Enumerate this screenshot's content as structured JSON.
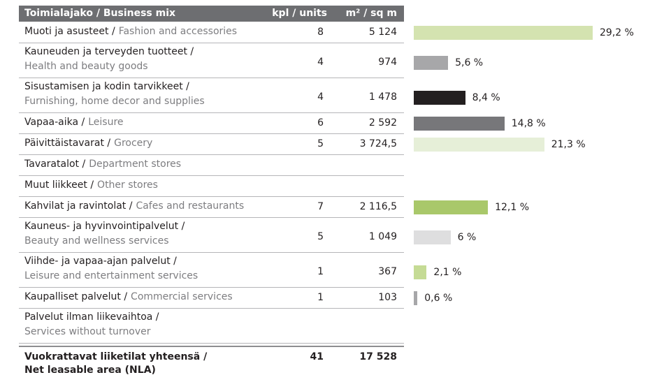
{
  "header": {
    "label": "Toimialajako / Business mix",
    "units": "kpl / units",
    "area": "m² / sq m"
  },
  "rows": [
    {
      "fi": "Muoti ja asusteet /",
      "en": "Fashion and accessories",
      "units": "8",
      "area": "5 124",
      "share": 29.2,
      "share_label": "29,2 %",
      "color": "#d4e3b0"
    },
    {
      "fi": "Kauneuden ja terveyden tuotteet /",
      "en": "Health and beauty goods",
      "units": "4",
      "area": "974",
      "share": 5.6,
      "share_label": "5,6 %",
      "color": "#a7a7a9"
    },
    {
      "fi": "Sisustamisen ja kodin tarvikkeet /",
      "en": "Furnishing, home decor and supplies",
      "units": "4",
      "area": "1 478",
      "share": 8.4,
      "share_label": "8,4 %",
      "color": "#231f20"
    },
    {
      "fi": "Vapaa-aika /",
      "en": "Leisure",
      "units": "6",
      "area": "2 592",
      "share": 14.8,
      "share_label": "14,8 %",
      "color": "#77777a"
    },
    {
      "fi": "Päivittäistavarat /",
      "en": "Grocery",
      "units": "5",
      "area": "3 724,5",
      "share": 21.3,
      "share_label": "21,3 %",
      "color": "#e6efd8"
    },
    {
      "fi": "Tavaratalot /",
      "en": "Department stores"
    },
    {
      "fi": "Muut liikkeet /",
      "en": "Other stores"
    },
    {
      "fi": "Kahvilat ja ravintolat /",
      "en": "Cafes and restaurants",
      "units": "7",
      "area": "2 116,5",
      "share": 12.1,
      "share_label": "12,1 %",
      "color": "#a9c86a"
    },
    {
      "fi": "Kauneus- ja hyvinvointipalvelut /",
      "en": "Beauty and wellness services",
      "units": "5",
      "area": "1 049",
      "share": 6,
      "share_label": "6 %",
      "color": "#dededf"
    },
    {
      "fi": "Viihde- ja vapaa-ajan palvelut /",
      "en": "Leisure and entertainment services",
      "units": "1",
      "area": "367",
      "share": 2.1,
      "share_label": "2,1 %",
      "color": "#c5db95"
    },
    {
      "fi": "Kaupalliset palvelut /",
      "en": "Commercial services",
      "units": "1",
      "area": "103",
      "share": 0.6,
      "share_label": "0,6 %",
      "color": "#a7a7a9"
    },
    {
      "fi": "Palvelut ilman liikevaihtoa /",
      "en": "Services without turnover"
    }
  ],
  "total": {
    "fi": "Vuokrattavat liiketilat yhteensä /",
    "en": "Net leasable area (NLA)",
    "units": "41",
    "area": "17 528"
  }
}
